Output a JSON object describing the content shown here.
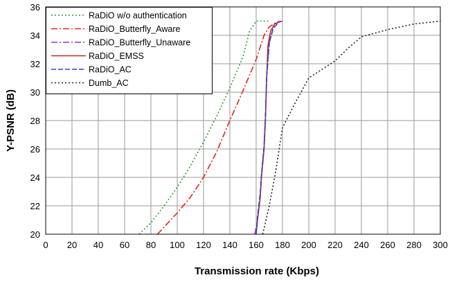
{
  "chart_data": {
    "type": "line",
    "xlabel": "Transmission rate (Kbps)",
    "ylabel": "Y-PSNR (dB)",
    "xlim": [
      0,
      300
    ],
    "ylim": [
      20,
      36
    ],
    "xticks": [
      0,
      20,
      40,
      60,
      80,
      100,
      120,
      140,
      160,
      180,
      200,
      220,
      240,
      260,
      280,
      300
    ],
    "yticks": [
      20,
      22,
      24,
      26,
      28,
      30,
      32,
      34,
      36
    ],
    "grid": true,
    "legend_position": "top-left",
    "series": [
      {
        "name": "RaDiO w/o authentication",
        "color": "#2e9a3c",
        "dash": "2,3",
        "x": [
          71,
          80,
          90,
          100,
          110,
          120,
          130,
          140,
          150,
          155,
          160,
          170
        ],
        "y": [
          20,
          20.8,
          22,
          23.3,
          24.8,
          26.5,
          28.3,
          30.3,
          32.5,
          34.3,
          35,
          35
        ]
      },
      {
        "name": "RaDiO_Butterfly_Aware",
        "color": "#e8231a",
        "dash": "9,3,2,3",
        "x": [
          85,
          90,
          100,
          110,
          120,
          130,
          140,
          150,
          160,
          166,
          170,
          175,
          180
        ],
        "y": [
          20,
          20.5,
          21.5,
          22.6,
          24,
          25.8,
          28,
          30.1,
          32.3,
          34,
          34.6,
          34.9,
          35
        ]
      },
      {
        "name": "RaDiO_Butterfly_Unaware",
        "color": "#9a35c4",
        "dash": "9,3,2,3",
        "x": [
          159,
          161,
          163,
          164,
          166,
          167,
          168,
          170,
          173,
          177
        ],
        "y": [
          20,
          21,
          22.5,
          24,
          26,
          28,
          31,
          33.5,
          34.5,
          35
        ]
      },
      {
        "name": "RaDiO_EMSS",
        "color": "#c0281f",
        "dash": "",
        "x": [
          160,
          161,
          163,
          164,
          166,
          167,
          168,
          169,
          171,
          174,
          179
        ],
        "y": [
          20,
          21,
          22.5,
          24,
          26,
          28,
          31,
          33.3,
          34.3,
          34.8,
          35
        ]
      },
      {
        "name": "RaDiO_AC",
        "color": "#2b3fd6",
        "dash": "7,3",
        "x": [
          160,
          161,
          163,
          164,
          166,
          167,
          168,
          170,
          173,
          178
        ],
        "y": [
          20,
          21.2,
          22.8,
          24.2,
          26.2,
          28.2,
          31.2,
          33.5,
          34.5,
          35
        ]
      },
      {
        "name": "Dumb_AC",
        "color": "#222222",
        "dash": "2,3",
        "x": [
          165,
          170,
          175,
          180,
          190,
          200,
          210,
          220,
          230,
          240,
          260,
          280,
          300
        ],
        "y": [
          20,
          22,
          24.5,
          27.5,
          29.3,
          31,
          31.6,
          32.2,
          33.1,
          33.9,
          34.4,
          34.8,
          35
        ]
      }
    ]
  }
}
